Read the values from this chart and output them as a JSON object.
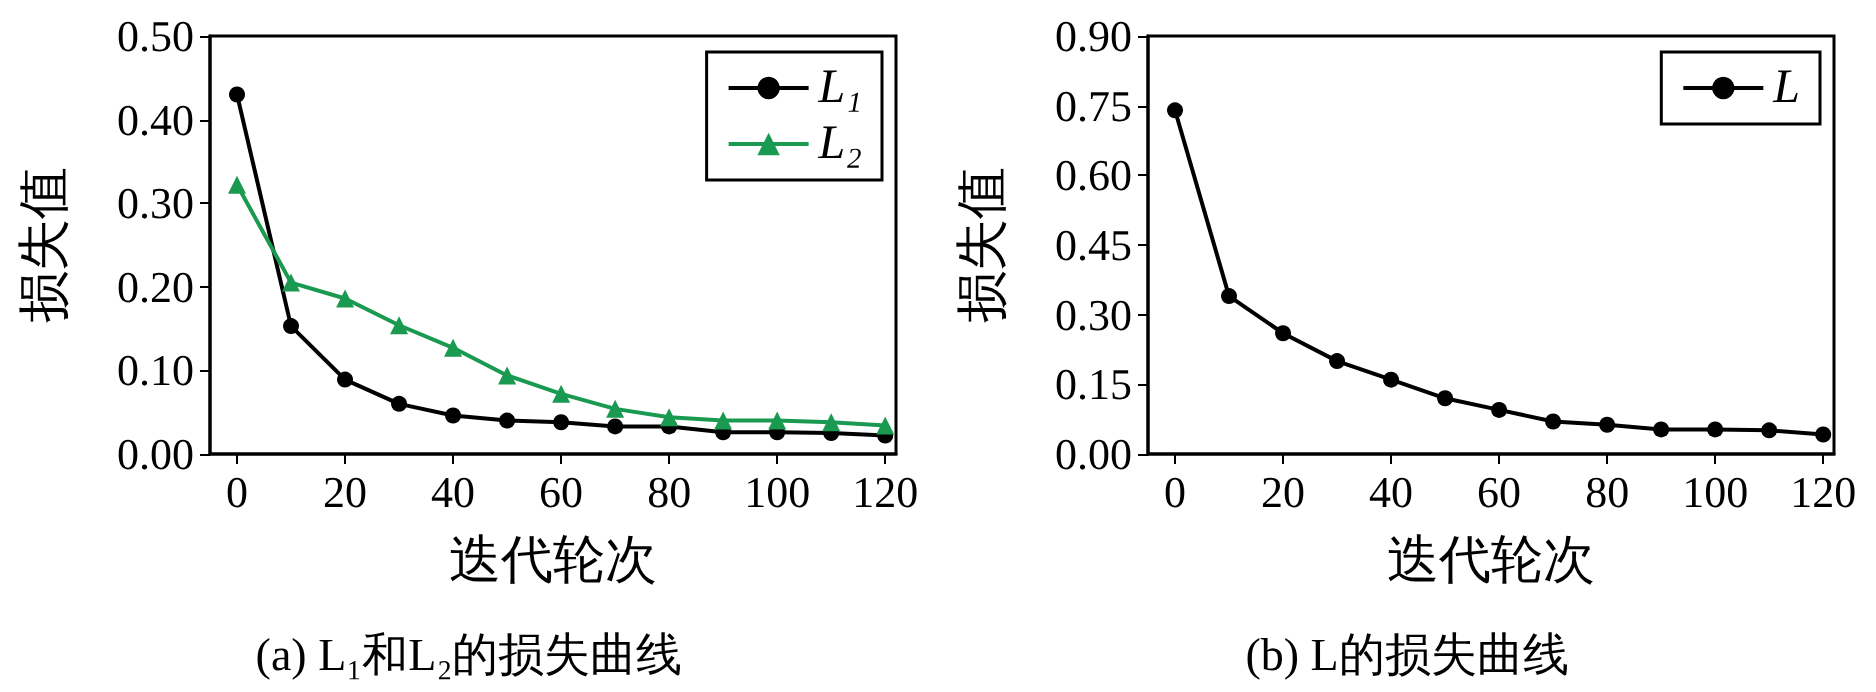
{
  "chart_data": [
    {
      "type": "line",
      "title": "(a) L₁和L₂的损失曲线",
      "xlabel": "迭代轮次",
      "ylabel": "损失值",
      "x": [
        0,
        10,
        20,
        30,
        40,
        50,
        60,
        70,
        80,
        90,
        100,
        110,
        120
      ],
      "xlim": [
        -5,
        122
      ],
      "xticks": [
        0,
        20,
        40,
        60,
        80,
        100,
        120
      ],
      "ylim": [
        0,
        0.5
      ],
      "yticks": [
        {
          "value": 0,
          "label": "0.00"
        },
        {
          "value": 0.1,
          "label": "0.10"
        },
        {
          "value": 0.2,
          "label": "0.20"
        },
        {
          "value": 0.3,
          "label": "0.30"
        },
        {
          "value": 0.4,
          "label": "0.40"
        },
        {
          "value": 0.5,
          "label": "0.50"
        }
      ],
      "grid": false,
      "legend": "top right",
      "series": [
        {
          "name": "L₁",
          "color": "#000000",
          "marker": "circle",
          "values": [
            0.43,
            0.153,
            0.089,
            0.06,
            0.046,
            0.04,
            0.038,
            0.033,
            0.033,
            0.026,
            0.026,
            0.025,
            0.022
          ]
        },
        {
          "name": "L₂",
          "color": "#1a9a50",
          "marker": "triangle",
          "values": [
            0.322,
            0.205,
            0.186,
            0.154,
            0.127,
            0.094,
            0.072,
            0.054,
            0.044,
            0.04,
            0.04,
            0.038,
            0.034
          ]
        }
      ]
    },
    {
      "type": "line",
      "title": "(b) L的损失曲线",
      "xlabel": "迭代轮次",
      "ylabel": "损失值",
      "x": [
        0,
        10,
        20,
        30,
        40,
        50,
        60,
        70,
        80,
        90,
        100,
        110,
        120
      ],
      "xlim": [
        -5,
        122
      ],
      "xticks": [
        0,
        20,
        40,
        60,
        80,
        100,
        120
      ],
      "ylim": [
        0,
        0.9
      ],
      "yticks": [
        {
          "value": 0,
          "label": "0.00"
        },
        {
          "value": 0.15,
          "label": "0.15"
        },
        {
          "value": 0.3,
          "label": "0.30"
        },
        {
          "value": 0.45,
          "label": "0.45"
        },
        {
          "value": 0.6,
          "label": "0.60"
        },
        {
          "value": 0.75,
          "label": "0.75"
        },
        {
          "value": 0.9,
          "label": "0.90"
        }
      ],
      "grid": false,
      "legend": "top right",
      "series": [
        {
          "name": "L",
          "color": "#000000",
          "marker": "circle",
          "values": [
            0.74,
            0.34,
            0.26,
            0.2,
            0.16,
            0.12,
            0.095,
            0.07,
            0.063,
            0.053,
            0.053,
            0.051,
            0.042
          ]
        }
      ]
    }
  ]
}
